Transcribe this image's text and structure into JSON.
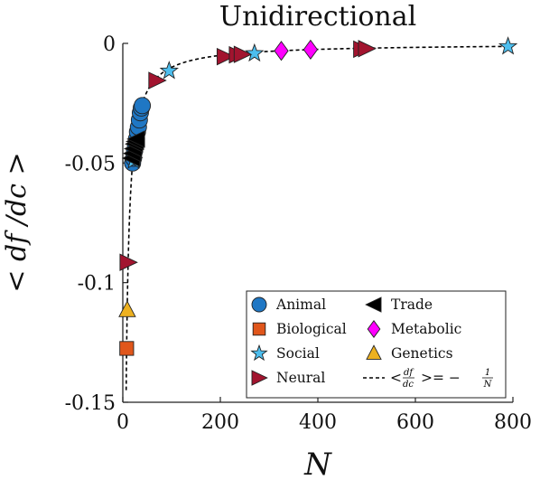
{
  "chart_data": {
    "type": "scatter",
    "title": "Unidirectional",
    "xlabel": "N",
    "ylabel": "< df /dc >",
    "xlim": [
      0,
      800
    ],
    "ylim": [
      -0.15,
      0
    ],
    "x_ticks": [
      "0",
      "200",
      "400",
      "600",
      "800"
    ],
    "y_ticks": [
      "0",
      "-0.05",
      "-0.1",
      "-0.15"
    ],
    "grid": false,
    "legend_position": "bottom-right",
    "series": [
      {
        "name": "Animal",
        "marker": "circle",
        "color": "#1f77c4",
        "points": [
          [
            20,
            -0.05
          ],
          [
            22,
            -0.048
          ],
          [
            24,
            -0.045
          ],
          [
            26,
            -0.043
          ],
          [
            28,
            -0.04
          ],
          [
            30,
            -0.037
          ],
          [
            32,
            -0.035
          ],
          [
            34,
            -0.032
          ],
          [
            36,
            -0.029
          ],
          [
            38,
            -0.027
          ],
          [
            40,
            -0.026
          ]
        ]
      },
      {
        "name": "Biological",
        "marker": "square",
        "color": "#e0561b",
        "points": [
          [
            8,
            -0.1275
          ]
        ]
      },
      {
        "name": "Social",
        "marker": "star",
        "color": "#4dbeee",
        "points": [
          [
            22,
            -0.049
          ],
          [
            95,
            -0.0115
          ],
          [
            270,
            -0.0042
          ],
          [
            790,
            -0.0013
          ]
        ]
      },
      {
        "name": "Neural",
        "marker": "triangle-right",
        "color": "#a2142f",
        "points": [
          [
            11,
            -0.0915
          ],
          [
            70,
            -0.0155
          ],
          [
            210,
            -0.0055
          ],
          [
            235,
            -0.0048
          ],
          [
            245,
            -0.0046
          ],
          [
            490,
            -0.0024
          ],
          [
            500,
            -0.0022
          ]
        ]
      },
      {
        "name": "Trade",
        "marker": "triangle-left",
        "color": "#000000",
        "points": [
          [
            18,
            -0.048
          ],
          [
            20,
            -0.046
          ],
          [
            22,
            -0.044
          ],
          [
            24,
            -0.042
          ],
          [
            26,
            -0.041
          ],
          [
            28,
            -0.04
          ]
        ]
      },
      {
        "name": "Metabolic",
        "marker": "diamond",
        "color": "#ff00ff",
        "points": [
          [
            325,
            -0.0031
          ],
          [
            385,
            -0.0026
          ]
        ]
      },
      {
        "name": "Genetics",
        "marker": "triangle-up",
        "color": "#edb120",
        "points": [
          [
            9,
            -0.1115
          ]
        ]
      }
    ],
    "curve": {
      "name_prefix": "<",
      "name_mid": ">= −",
      "frac1_num": "df",
      "frac1_den": "dc",
      "frac2_num": "1",
      "frac2_den": "N",
      "style": "dashed",
      "color": "#000000",
      "function": "-1/N",
      "x_range": [
        6.9,
        800
      ]
    }
  }
}
